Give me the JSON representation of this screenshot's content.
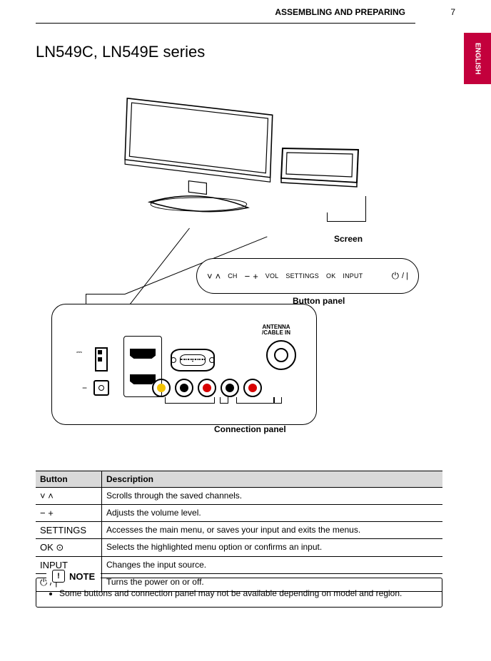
{
  "page": {
    "number": "7",
    "section_label": "ASSEMBLING AND PREPARING"
  },
  "side_tab": "ENGLISH",
  "series": "LN549C, LN549E series",
  "callouts": {
    "screen": "Screen",
    "button_panel": "Button panel",
    "connection_panel": "Connection panel"
  },
  "button_panel": {
    "ch": {
      "down": "˅",
      "up": "˄",
      "label": "CH"
    },
    "vol": {
      "minus": "−",
      "plus": "+",
      "label": "VOL"
    },
    "settings": "SETTINGS",
    "ok": "OK",
    "input": "INPUT",
    "power": {
      "icon": "⏻",
      "divider": "/ |"
    }
  },
  "ports": {
    "antenna_label": "ANTENNA\n/CABLE IN",
    "rca_colors": [
      "#f2c200",
      "#000000",
      "#d80000",
      "#000000",
      "#d80000"
    ]
  },
  "table": {
    "headers": {
      "button": "Button",
      "description": "Description"
    },
    "rows": [
      {
        "sym": "˅ ˄",
        "desc": "Scrolls through the saved channels."
      },
      {
        "sym": "− +",
        "desc": "Adjusts the volume level."
      },
      {
        "sym": "SETTINGS",
        "desc": "Accesses the main menu, or saves your input and exits the menus."
      },
      {
        "sym": "OK ⊙",
        "desc": "Selects the highlighted menu option or confirms an input."
      },
      {
        "sym": "INPUT",
        "desc": "Changes the input source."
      },
      {
        "sym": "⏻ / |",
        "desc": "Turns the power on or off."
      }
    ]
  },
  "note": {
    "title": "NOTE",
    "item": "Some buttons and connection panel may not be available depending on model and region."
  }
}
